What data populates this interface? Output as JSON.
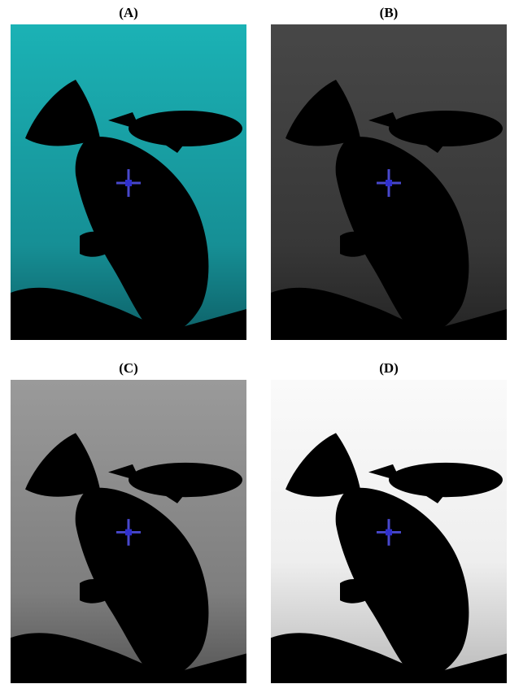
{
  "panels": [
    {
      "label": "(A)"
    },
    {
      "label": "(B)"
    },
    {
      "label": "(C)"
    },
    {
      "label": "(D)"
    }
  ]
}
